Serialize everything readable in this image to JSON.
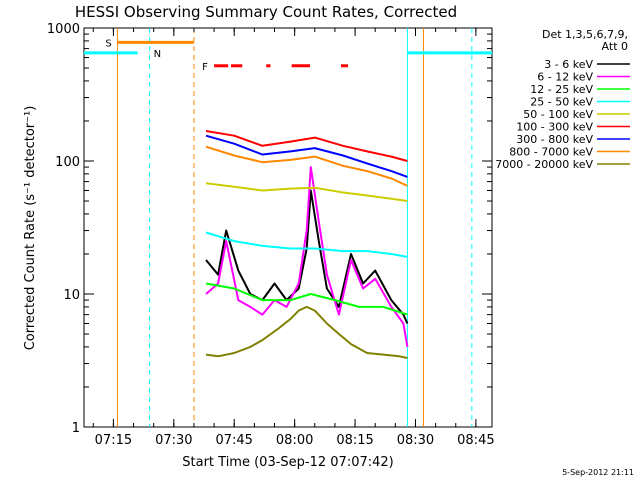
{
  "chart_data": {
    "type": "line",
    "title": "HESSI Observing Summary Count Rates, Corrected",
    "ylabel": "Corrected Count Rate (s⁻¹ detector⁻¹)",
    "xlabel": "Start Time (03-Sep-12 07:07:42)",
    "yscale": "log",
    "ylim": [
      1,
      1000
    ],
    "xlim": [
      "07:07:42",
      "08:49:00"
    ],
    "x_ticks": [
      "07:15",
      "07:30",
      "07:45",
      "08:00",
      "08:15",
      "08:30",
      "08:45"
    ],
    "y_ticks": [
      "1",
      "10",
      "100",
      "1000"
    ],
    "legend": {
      "placement": "right",
      "header": [
        "Det 1,3,5,6,7,9,",
        "Att 0"
      ],
      "entries": [
        {
          "name": "3 - 6 keV",
          "color": "#000000"
        },
        {
          "name": "6 - 12 keV",
          "color": "#ff00ff"
        },
        {
          "name": "12 - 25 keV",
          "color": "#00ff00"
        },
        {
          "name": "25 - 50 keV",
          "color": "#00ffff"
        },
        {
          "name": "50 - 100 keV",
          "color": "#cccc00"
        },
        {
          "name": "100 - 300 keV",
          "color": "#ff0000"
        },
        {
          "name": "300 - 800 keV",
          "color": "#0000ff"
        },
        {
          "name": "800 - 7000 keV",
          "color": "#ff8800"
        },
        {
          "name": "7000 - 20000 keV",
          "color": "#808000"
        }
      ]
    },
    "series": [
      {
        "name": "3 - 6 keV",
        "color": "#000000",
        "x": [
          "07:38",
          "07:41",
          "07:43",
          "07:46",
          "07:49",
          "07:52",
          "07:55",
          "07:58",
          "08:01",
          "08:03",
          "08:04",
          "08:06",
          "08:08",
          "08:11",
          "08:14",
          "08:17",
          "08:20",
          "08:24",
          "08:27",
          "08:28"
        ],
        "y": [
          18,
          14,
          30,
          15,
          10,
          9,
          12,
          9,
          11,
          22,
          60,
          25,
          11,
          8,
          20,
          12,
          15,
          9,
          7,
          6
        ]
      },
      {
        "name": "6 - 12 keV",
        "color": "#ff00ff",
        "x": [
          "07:38",
          "07:41",
          "07:43",
          "07:46",
          "07:49",
          "07:52",
          "07:55",
          "07:58",
          "08:01",
          "08:03",
          "08:04",
          "08:06",
          "08:08",
          "08:11",
          "08:14",
          "08:17",
          "08:20",
          "08:24",
          "08:27",
          "08:28"
        ],
        "y": [
          10,
          12,
          25,
          9,
          8,
          7,
          9,
          8,
          12,
          30,
          90,
          35,
          14,
          7,
          18,
          11,
          13,
          8,
          6,
          4
        ]
      },
      {
        "name": "12 - 25 keV",
        "color": "#00ff00",
        "x": [
          "07:38",
          "07:45",
          "07:52",
          "07:59",
          "08:04",
          "08:10",
          "08:16",
          "08:22",
          "08:28"
        ],
        "y": [
          12,
          11,
          9,
          9,
          10,
          9,
          8,
          8,
          7
        ]
      },
      {
        "name": "25 - 50 keV",
        "color": "#00ffff",
        "x": [
          "07:38",
          "07:45",
          "07:52",
          "07:59",
          "08:05",
          "08:12",
          "08:18",
          "08:24",
          "08:28"
        ],
        "y": [
          29,
          25,
          23,
          22,
          22,
          21,
          21,
          20,
          19
        ]
      },
      {
        "name": "50 - 100 keV",
        "color": "#cccc00",
        "x": [
          "07:38",
          "07:45",
          "07:52",
          "07:59",
          "08:05",
          "08:12",
          "08:18",
          "08:24",
          "08:28"
        ],
        "y": [
          68,
          64,
          60,
          62,
          63,
          58,
          55,
          52,
          50
        ]
      },
      {
        "name": "100 - 300 keV",
        "color": "#ff0000",
        "x": [
          "07:38",
          "07:45",
          "07:52",
          "07:59",
          "08:05",
          "08:12",
          "08:18",
          "08:24",
          "08:28"
        ],
        "y": [
          168,
          155,
          130,
          140,
          150,
          130,
          118,
          108,
          100
        ]
      },
      {
        "name": "300 - 800 keV",
        "color": "#0000ff",
        "x": [
          "07:38",
          "07:45",
          "07:52",
          "07:59",
          "08:05",
          "08:12",
          "08:18",
          "08:24",
          "08:28"
        ],
        "y": [
          155,
          135,
          112,
          118,
          125,
          110,
          96,
          84,
          76
        ]
      },
      {
        "name": "800 - 7000 keV",
        "color": "#ff8800",
        "x": [
          "07:38",
          "07:45",
          "07:52",
          "07:59",
          "08:05",
          "08:12",
          "08:18",
          "08:24",
          "08:28"
        ],
        "y": [
          128,
          110,
          98,
          102,
          108,
          92,
          84,
          74,
          65
        ]
      },
      {
        "name": "7000 - 20000 keV",
        "color": "#808000",
        "x": [
          "07:38",
          "07:41",
          "07:45",
          "07:49",
          "07:52",
          "07:56",
          "07:59",
          "08:01",
          "08:03",
          "08:05",
          "08:08",
          "08:11",
          "08:14",
          "08:18",
          "08:22",
          "08:26",
          "08:28"
        ],
        "y": [
          3.5,
          3.4,
          3.6,
          4.0,
          4.5,
          5.5,
          6.5,
          7.5,
          8.0,
          7.5,
          6.0,
          5.0,
          4.2,
          3.6,
          3.5,
          3.4,
          3.3
        ]
      }
    ],
    "saa_level": 650,
    "markers": [
      {
        "label": "S",
        "color": "#ff8800",
        "x": [
          "07:16",
          "07:35"
        ],
        "y": 780
      },
      {
        "label": "N",
        "color": "#00ffff",
        "x": [
          "07:24"
        ],
        "y": 650
      },
      {
        "label": "F",
        "color": "#ff0000",
        "x": [
          "07:40",
          "08:15"
        ],
        "y": 520
      }
    ],
    "vertical_lines": [
      {
        "x": "07:16",
        "color": "#ff8800",
        "style": "solid"
      },
      {
        "x": "07:24",
        "color": "#00ffff",
        "style": "dashed"
      },
      {
        "x": "07:35",
        "color": "#ff8800",
        "style": "dashed"
      },
      {
        "x": "08:28",
        "color": "#00ffff",
        "style": "solid"
      },
      {
        "x": "08:32",
        "color": "#ff8800",
        "style": "solid"
      },
      {
        "x": "08:44",
        "color": "#00ffff",
        "style": "dashed"
      }
    ],
    "footer_date": "5-Sep-2012 21:11"
  }
}
